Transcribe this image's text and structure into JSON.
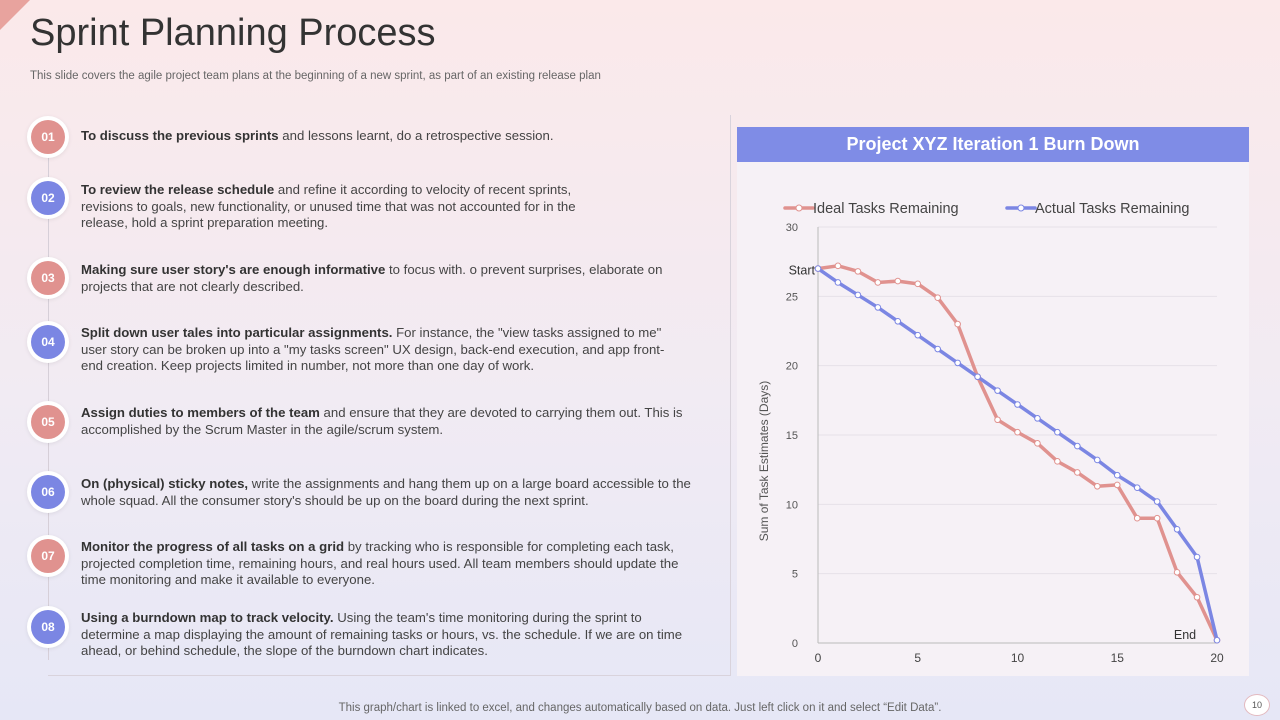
{
  "slide": {
    "title": "Sprint Planning Process",
    "subtitle": "This slide covers the agile project team plans at the beginning of a new sprint, as part of an existing release plan",
    "footer": "This graph/chart is linked to excel, and changes automatically based on data. Just left click on it and select “Edit Data”.",
    "page_number": "10"
  },
  "colors": {
    "pink": "#e0928f",
    "blue": "#7b86e3",
    "header": "#7f8ce6"
  },
  "steps": [
    {
      "num": "01",
      "bold": "To discuss the previous sprints",
      "text": " and lessons learnt, do a retrospective session."
    },
    {
      "num": "02",
      "bold": "To review the release schedule",
      "text": " and refine it according to velocity of recent sprints, revisions to goals, new functionality, or unused time that was not accounted for in the release, hold a sprint preparation meeting."
    },
    {
      "num": "03",
      "bold": "Making sure user story's are enough informative",
      "text": " to focus with. o prevent surprises, elaborate on projects that are not clearly described."
    },
    {
      "num": "04",
      "bold": "Split down user tales into particular assignments.",
      "text": " For instance, the \"view tasks assigned to me\" user story can be broken up into a \"my tasks screen\" UX design, back-end execution, and app front-end creation. Keep projects limited in number, not more than one day of work."
    },
    {
      "num": "05",
      "bold": "Assign duties to members of the team",
      "text": " and ensure that they are devoted to carrying them out. This is accomplished by the Scrum Master in the agile/scrum system."
    },
    {
      "num": "06",
      "bold": "On (physical) sticky notes,",
      "text": " write the assignments and hang them up on a large board accessible to the whole squad. All the consumer story's should be up on the board during the next sprint."
    },
    {
      "num": "07",
      "bold": "Monitor the progress of all tasks on a grid",
      "text": " by tracking who is responsible for completing each task, projected completion time, remaining hours, and real hours used. All team members should update the time monitoring and make it available to everyone."
    },
    {
      "num": "08",
      "bold": "Using a burndown map to track velocity.",
      "text": " Using the team's time monitoring during the sprint to determine a map displaying the amount of remaining tasks or hours, vs. the schedule. If we are on time ahead, or behind schedule, the slope of the burndown chart indicates."
    }
  ],
  "chart_data": {
    "type": "line",
    "title": "Project XYZ Iteration 1 Burn Down",
    "ylabel": "Sum of Task Estimates (Days)",
    "xlabel": "",
    "x": [
      0,
      1,
      2,
      3,
      4,
      5,
      6,
      7,
      8,
      9,
      10,
      11,
      12,
      13,
      14,
      15,
      16,
      17,
      18,
      19,
      20
    ],
    "xlim": [
      0,
      20
    ],
    "ylim": [
      0,
      30
    ],
    "xticks": [
      0,
      5,
      10,
      15,
      20
    ],
    "yticks": [
      0,
      5,
      10,
      15,
      20,
      25,
      30
    ],
    "grid": true,
    "legend": "top",
    "series": [
      {
        "name": "Ideal Tasks Remaining",
        "color": "#e0928f",
        "values": [
          27,
          27.2,
          26.8,
          26,
          26.1,
          25.9,
          24.9,
          23,
          19.2,
          16.1,
          15.2,
          14.4,
          13.1,
          12.3,
          11.3,
          11.4,
          9,
          9,
          5.1,
          3.3,
          0.2
        ]
      },
      {
        "name": "Actual Tasks Remaining",
        "color": "#7b86e3",
        "values": [
          27,
          26,
          25.1,
          24.2,
          23.2,
          22.2,
          21.2,
          20.2,
          19.2,
          18.2,
          17.2,
          16.2,
          15.2,
          14.2,
          13.2,
          12.1,
          11.2,
          10.2,
          8.2,
          6.2,
          0.2
        ]
      }
    ],
    "annotations": [
      {
        "text": "Start",
        "x": 0,
        "y": 27
      },
      {
        "text": "End",
        "x": 20,
        "y": 0
      }
    ]
  }
}
